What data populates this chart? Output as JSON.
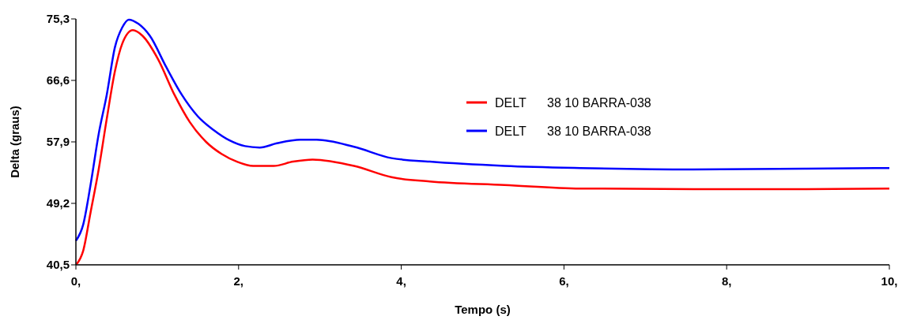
{
  "chart_data": {
    "type": "line",
    "xlabel": "Tempo (s)",
    "ylabel": "Delta (graus)",
    "xlim": [
      0,
      10
    ],
    "ylim": [
      40.5,
      75.3
    ],
    "xticks": [
      {
        "value": 0,
        "label": "0,"
      },
      {
        "value": 2,
        "label": "2,"
      },
      {
        "value": 4,
        "label": "4,"
      },
      {
        "value": 6,
        "label": "6,"
      },
      {
        "value": 8,
        "label": "8,"
      },
      {
        "value": 10,
        "label": "10,"
      }
    ],
    "yticks": [
      {
        "value": 40.5,
        "label": "40,5"
      },
      {
        "value": 49.2,
        "label": "49,2"
      },
      {
        "value": 57.9,
        "label": "57,9"
      },
      {
        "value": 66.6,
        "label": "66,6"
      },
      {
        "value": 75.3,
        "label": "75,3"
      }
    ],
    "grid": false,
    "legend": "top right",
    "marker": "none",
    "line_style": "solid",
    "series": [
      {
        "name": "DELT      38 10 BARRA-038",
        "color": "#ff0000",
        "x": [
          0.01,
          0.09,
          0.18,
          0.28,
          0.38,
          0.48,
          0.57,
          0.7,
          0.82,
          1.01,
          1.21,
          1.4,
          1.6,
          1.79,
          1.98,
          2.18,
          2.43,
          2.67,
          2.91,
          3.42,
          3.88,
          4.35,
          5.27,
          6.2,
          7.59,
          8.98,
          10
        ],
        "values": [
          40.6,
          42.5,
          47.9,
          54.0,
          61.2,
          67.9,
          71.8,
          73.7,
          72.9,
          69.6,
          64.6,
          60.7,
          57.9,
          56.2,
          55.1,
          54.5,
          54.5,
          55.1,
          55.4,
          54.5,
          52.9,
          52.3,
          51.8,
          51.3,
          51.2,
          51.2,
          51.3
        ]
      },
      {
        "name": "DELT      38 10 BARRA-038",
        "color": "#0000ff",
        "x": [
          0,
          0.09,
          0.18,
          0.28,
          0.38,
          0.48,
          0.57,
          0.65,
          0.77,
          0.91,
          1.11,
          1.3,
          1.5,
          1.69,
          1.89,
          2.08,
          2.26,
          2.47,
          2.76,
          2.96,
          3.42,
          3.88,
          4.35,
          5.27,
          6.2,
          7.59,
          8.98,
          10
        ],
        "values": [
          43.9,
          46.2,
          51.8,
          59.0,
          64.6,
          71.3,
          74.1,
          75.2,
          74.6,
          72.9,
          68.5,
          64.6,
          61.5,
          59.6,
          58.1,
          57.3,
          57.1,
          57.7,
          58.2,
          58.2,
          57.2,
          55.6,
          55.1,
          54.5,
          54.2,
          54.0,
          54.1,
          54.2
        ]
      }
    ]
  }
}
